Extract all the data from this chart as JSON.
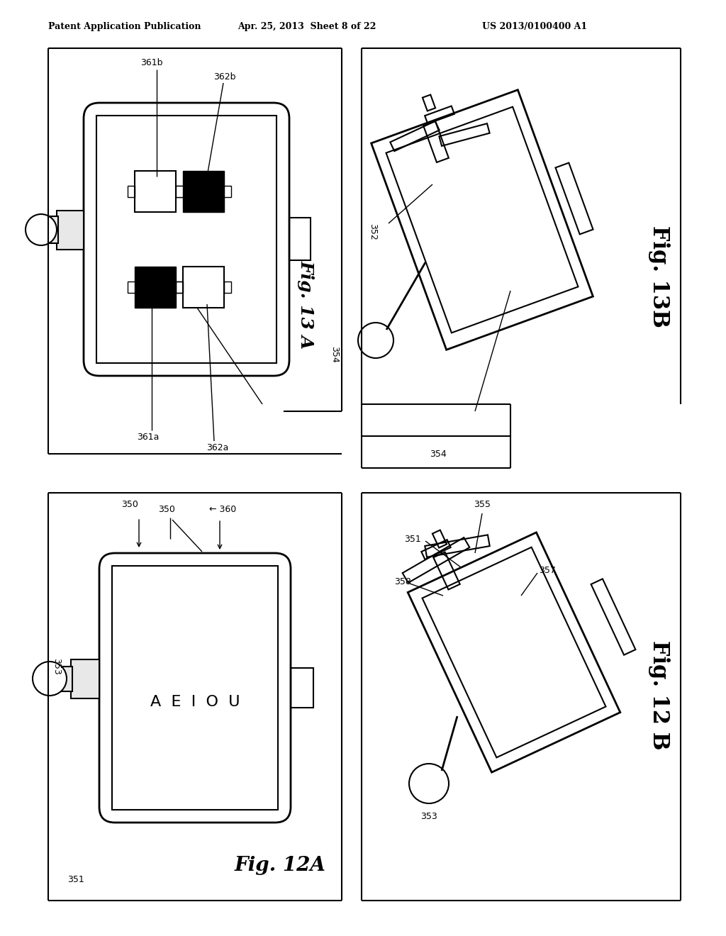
{
  "bg_color": "#ffffff",
  "lc": "#000000",
  "header_left": "Patent Application Publication",
  "header_mid": "Apr. 25, 2013  Sheet 8 of 22",
  "header_right": "US 2013/0100400 A1",
  "fig13A": "Fig. 13 A",
  "fig13B": "Fig. 13B",
  "fig12A": "Fig. 12A",
  "fig12B": "Fig. 12 B"
}
